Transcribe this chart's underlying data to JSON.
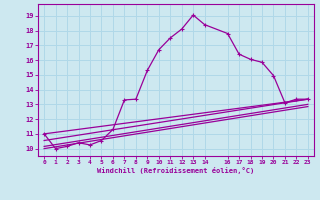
{
  "xlabel": "Windchill (Refroidissement éolien,°C)",
  "bg_color": "#cde8f0",
  "grid_color": "#b0d8e8",
  "line_color": "#990099",
  "xlim": [
    -0.5,
    23.5
  ],
  "ylim": [
    9.5,
    19.8
  ],
  "x_ticks": [
    0,
    1,
    2,
    3,
    4,
    5,
    6,
    7,
    8,
    9,
    10,
    11,
    12,
    13,
    14,
    16,
    17,
    18,
    19,
    20,
    21,
    22,
    23
  ],
  "y_ticks": [
    10,
    11,
    12,
    13,
    14,
    15,
    16,
    17,
    18,
    19
  ],
  "main_x": [
    0,
    1,
    2,
    3,
    4,
    5,
    6,
    7,
    8,
    9,
    10,
    11,
    12,
    13,
    14,
    16,
    17,
    18,
    19,
    20,
    21,
    22,
    23
  ],
  "main_y": [
    11.0,
    10.0,
    10.15,
    10.4,
    10.25,
    10.55,
    11.3,
    13.3,
    13.35,
    15.3,
    16.7,
    17.5,
    18.1,
    19.05,
    18.4,
    17.8,
    16.4,
    16.05,
    15.85,
    14.95,
    13.1,
    13.35,
    13.35
  ],
  "trend1_x": [
    0,
    23
  ],
  "trend1_y": [
    11.0,
    13.35
  ],
  "trend2_x": [
    0,
    23
  ],
  "trend2_y": [
    10.55,
    13.35
  ],
  "trend3_x": [
    0,
    23
  ],
  "trend3_y": [
    10.0,
    12.85
  ],
  "trend4_x": [
    0,
    23
  ],
  "trend4_y": [
    10.15,
    13.0
  ],
  "lw": 0.9,
  "ms": 2.5
}
